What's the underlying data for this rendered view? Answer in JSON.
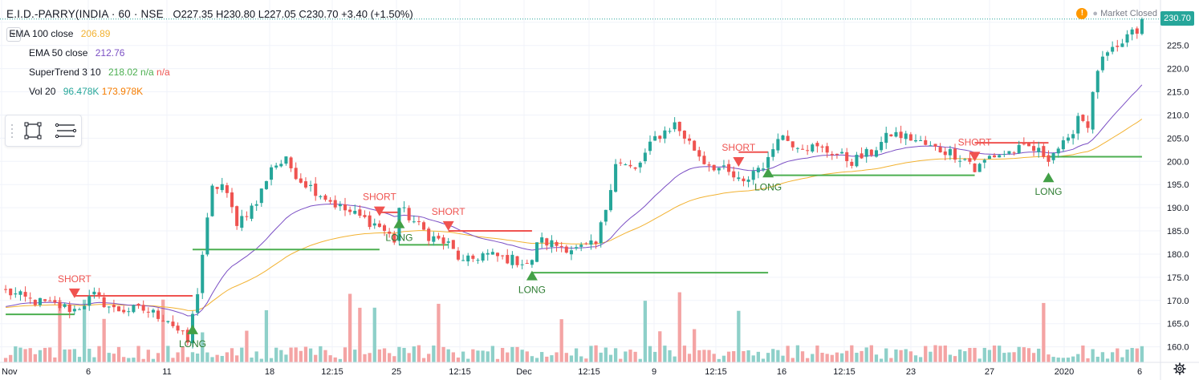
{
  "header": {
    "symbol": "E.I.D.-PARRY(INDIA · 60 · NSE",
    "ohlc": "O227.35 H230.80 L227.05 C230.70 +3.40 (+1.50%)"
  },
  "indicators": [
    {
      "name": "EMA 100 close",
      "v1": "206.89",
      "v2": "",
      "v3": "",
      "c1": "#f2b232",
      "c2": "",
      "c3": ""
    },
    {
      "name": "EMA 50 close",
      "v1": "212.76",
      "v2": "",
      "v3": "",
      "c1": "#7b4fc4",
      "c2": "",
      "c3": ""
    },
    {
      "name": "SuperTrend 3 10",
      "v1": "218.02",
      "v2": "n/a",
      "v3": "n/a",
      "c1": "#4caf50",
      "c2": "#4caf50",
      "c3": "#ef5350"
    },
    {
      "name": "Vol 20",
      "v1": "96.478K",
      "v2": "173.978K",
      "v3": "",
      "c1": "#26a69a",
      "c2": "#f57c00",
      "c3": ""
    }
  ],
  "status": {
    "market": "Market Closed",
    "last_price": "230.70"
  },
  "icons": {
    "collapse": "chevron-down-icon",
    "rect_tool": "rectangle-tool-icon",
    "lines_tool": "horizontal-lines-icon",
    "warning": "warning-icon",
    "settings": "gear-icon"
  },
  "colors": {
    "up": "#26a69a",
    "down": "#ef5350",
    "ema100": "#f2b232",
    "ema50": "#7b4fc4",
    "st_up": "#4caf50",
    "st_down": "#ef5350",
    "vol_up": "#8ed0c9",
    "vol_down": "#f4a4a4"
  },
  "chart_data": {
    "type": "candlestick",
    "y_ticks": [
      "230.0",
      "225.0",
      "220.0",
      "215.0",
      "210.0",
      "205.0",
      "200.0",
      "195.0",
      "190.0",
      "185.0",
      "180.0",
      "175.0",
      "170.0",
      "165.0",
      "160.0"
    ],
    "x_ticks": [
      "Nov",
      "6",
      "11",
      "18",
      "12:15",
      "25",
      "12:15",
      "Dec",
      "12:15",
      "9",
      "12:15",
      "16",
      "12:15",
      "23",
      "27",
      "2020",
      "6"
    ],
    "ylim": [
      157,
      231
    ],
    "signals": [
      {
        "label": "SHORT",
        "type": "short",
        "bar": 14
      },
      {
        "label": "LONG",
        "type": "long",
        "bar": 38
      },
      {
        "label": "SHORT",
        "type": "short",
        "bar": 76
      },
      {
        "label": "LONG",
        "type": "long",
        "bar": 80
      },
      {
        "label": "SHORT",
        "type": "short",
        "bar": 90
      },
      {
        "label": "LONG",
        "type": "long",
        "bar": 107
      },
      {
        "label": "SHORT",
        "type": "short",
        "bar": 149
      },
      {
        "label": "LONG",
        "type": "long",
        "bar": 155
      },
      {
        "label": "SHORT",
        "type": "short",
        "bar": 197
      },
      {
        "label": "LONG",
        "type": "long",
        "bar": 212
      }
    ],
    "path": [
      [
        0,
        172
      ],
      [
        5,
        170
      ],
      [
        10,
        169
      ],
      [
        14,
        168
      ],
      [
        18,
        171
      ],
      [
        22,
        168
      ],
      [
        28,
        168
      ],
      [
        33,
        166
      ],
      [
        37,
        161
      ],
      [
        39,
        172
      ],
      [
        40,
        180
      ],
      [
        42,
        194
      ],
      [
        44,
        195
      ],
      [
        47,
        187
      ],
      [
        51,
        191
      ],
      [
        54,
        199
      ],
      [
        57,
        200
      ],
      [
        60,
        196
      ],
      [
        64,
        193
      ],
      [
        68,
        190
      ],
      [
        72,
        188
      ],
      [
        76,
        186
      ],
      [
        79,
        183
      ],
      [
        80,
        190
      ],
      [
        82,
        188
      ],
      [
        86,
        184
      ],
      [
        90,
        182
      ],
      [
        93,
        178
      ],
      [
        97,
        180
      ],
      [
        102,
        179
      ],
      [
        107,
        178
      ],
      [
        108,
        183
      ],
      [
        112,
        182
      ],
      [
        116,
        181
      ],
      [
        120,
        182
      ],
      [
        122,
        190
      ],
      [
        124,
        200
      ],
      [
        128,
        198
      ],
      [
        132,
        205
      ],
      [
        136,
        208
      ],
      [
        139,
        204
      ],
      [
        142,
        200
      ],
      [
        146,
        198
      ],
      [
        150,
        195
      ],
      [
        152,
        198
      ],
      [
        155,
        200
      ],
      [
        157,
        206
      ],
      [
        160,
        204
      ],
      [
        164,
        203
      ],
      [
        168,
        202
      ],
      [
        172,
        200
      ],
      [
        176,
        202
      ],
      [
        180,
        206
      ],
      [
        184,
        205
      ],
      [
        188,
        203
      ],
      [
        192,
        202
      ],
      [
        196,
        200
      ],
      [
        197,
        198
      ],
      [
        200,
        201
      ],
      [
        204,
        202
      ],
      [
        208,
        203
      ],
      [
        212,
        201
      ],
      [
        214,
        203
      ],
      [
        216,
        204
      ],
      [
        218,
        210
      ],
      [
        220,
        208
      ],
      [
        222,
        220
      ],
      [
        224,
        223
      ],
      [
        226,
        224
      ],
      [
        228,
        227
      ],
      [
        230,
        228
      ],
      [
        231,
        230.7
      ]
    ],
    "supertrend": [
      {
        "from": 0,
        "to": 14,
        "value": 167,
        "dir": "up"
      },
      {
        "from": 14,
        "to": 38,
        "value": 171,
        "dir": "down"
      },
      {
        "from": 38,
        "to": 76,
        "value": 181,
        "dir": "up"
      },
      {
        "from": 76,
        "to": 80,
        "value": 189,
        "dir": "down"
      },
      {
        "from": 80,
        "to": 90,
        "value": 182,
        "dir": "up"
      },
      {
        "from": 90,
        "to": 107,
        "value": 185,
        "dir": "down"
      },
      {
        "from": 107,
        "to": 155,
        "value": 176,
        "dir": "up"
      },
      {
        "from": 149,
        "to": 155,
        "value": 202,
        "dir": "down"
      },
      {
        "from": 155,
        "to": 197,
        "value": 197,
        "dir": "up"
      },
      {
        "from": 197,
        "to": 212,
        "value": 204,
        "dir": "down"
      },
      {
        "from": 212,
        "to": 231,
        "value": 201,
        "dir": "up"
      }
    ],
    "ema100_last": 206.89,
    "ema50_last": 212.76,
    "supertrend_last": 218.02,
    "volume_last": 96.478,
    "volume_ma_last": 173.978
  }
}
